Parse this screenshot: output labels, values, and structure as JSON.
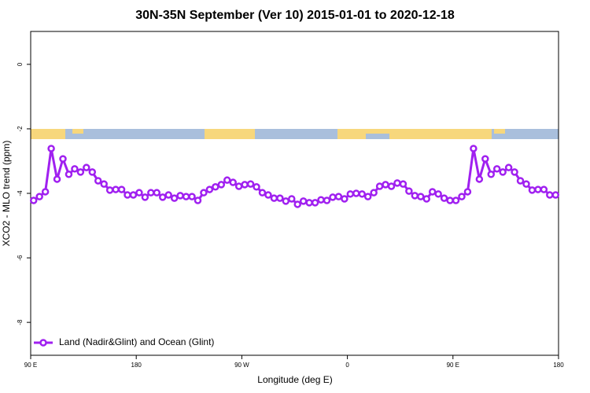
{
  "chart_data": {
    "type": "line",
    "title": "30N-35N September (Ver 10)   2015-01-01 to 2020-12-18",
    "x_label": "Longitude (deg E)",
    "y_label": "XCO2 - MLO trend (ppm)",
    "xlim": [
      90,
      540
    ],
    "ylim": [
      -9.02,
      1.02
    ],
    "xticks": [
      {
        "value": 90,
        "label": "90 E"
      },
      180,
      {
        "value": 270,
        "label": "90 W"
      },
      {
        "value": 360,
        "label": "0"
      },
      {
        "value": 450,
        "label": "90 E"
      },
      {
        "value": 540,
        "label": "180"
      }
    ],
    "yticks": [
      0,
      -2,
      -4,
      -6,
      -8
    ],
    "legend": "bottom-left",
    "x": [
      92.5,
      97.5,
      102.5,
      107.5,
      112.5,
      117.5,
      122.5,
      127.5,
      132.5,
      137.5,
      142.5,
      147.5,
      152.5,
      157.5,
      162.5,
      167.5,
      172.5,
      177.5,
      182.5,
      187.5,
      192.5,
      197.5,
      202.5,
      207.5,
      212.5,
      217.5,
      222.5,
      227.5,
      232.5,
      237.5,
      242.5,
      247.5,
      252.5,
      257.5,
      262.5,
      267.5,
      272.5,
      277.5,
      282.5,
      287.5,
      292.5,
      297.5,
      302.5,
      307.5,
      312.5,
      317.5,
      322.5,
      327.5,
      332.5,
      337.5,
      342.5,
      347.5,
      352.5,
      357.5,
      362.5,
      367.5,
      372.5,
      377.5,
      382.5,
      387.5,
      392.5,
      397.5,
      402.5,
      407.5,
      412.5,
      417.5,
      422.5,
      427.5,
      432.5,
      437.5,
      442.5,
      447.5,
      452.5,
      457.5,
      462.5,
      467.5,
      472.5,
      477.5,
      482.5,
      487.5,
      492.5,
      497.5,
      502.5,
      507.5,
      512.5,
      517.5,
      522.5,
      527.5,
      532.5,
      537.5
    ],
    "series": [
      {
        "name": "Land (Nadir&Glint) and Ocean (Glint)",
        "color": "#a020f0",
        "values": [
          -4.22,
          -4.1,
          -3.95,
          -2.61,
          -3.56,
          -2.93,
          -3.41,
          -3.24,
          -3.34,
          -3.2,
          -3.34,
          -3.61,
          -3.71,
          -3.9,
          -3.88,
          -3.88,
          -4.05,
          -4.05,
          -3.98,
          -4.12,
          -3.98,
          -3.98,
          -4.12,
          -4.05,
          -4.15,
          -4.07,
          -4.1,
          -4.1,
          -4.22,
          -3.98,
          -3.88,
          -3.8,
          -3.73,
          -3.59,
          -3.66,
          -3.78,
          -3.73,
          -3.71,
          -3.8,
          -3.98,
          -4.05,
          -4.15,
          -4.15,
          -4.24,
          -4.17,
          -4.34,
          -4.24,
          -4.29,
          -4.29,
          -4.2,
          -4.22,
          -4.12,
          -4.1,
          -4.17,
          -4.02,
          -4.0,
          -4.02,
          -4.1,
          -3.98,
          -3.78,
          -3.73,
          -3.78,
          -3.68,
          -3.71,
          -3.93,
          -4.07,
          -4.1,
          -4.17,
          -3.95,
          -4.02,
          -4.15,
          -4.22,
          -4.22,
          -4.1,
          -3.95,
          -2.61,
          -3.56,
          -2.93,
          -3.41,
          -3.24,
          -3.34,
          -3.2,
          -3.34,
          -3.61,
          -3.71,
          -3.9,
          -3.88,
          -3.88,
          -4.05,
          -4.05
        ]
      }
    ]
  }
}
